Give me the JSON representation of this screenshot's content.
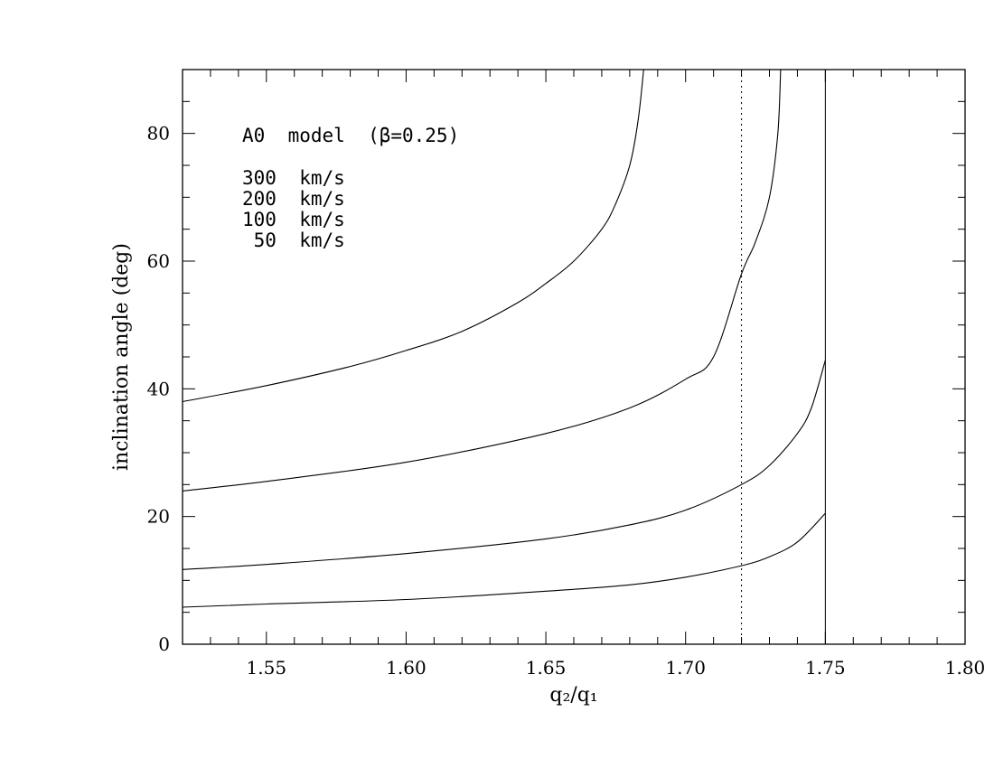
{
  "chart_data": {
    "type": "line",
    "title": "",
    "xlabel": "q₂/q₁",
    "ylabel": "inclination angle (deg)",
    "xlim": [
      1.52,
      1.8
    ],
    "ylim": [
      0,
      90
    ],
    "x_ticks": [
      1.55,
      1.6,
      1.65,
      1.7,
      1.75,
      1.8
    ],
    "x_tick_labels": [
      "1.55",
      "1.60",
      "1.65",
      "1.70",
      "1.75",
      "1.80"
    ],
    "y_ticks": [
      0,
      20,
      40,
      60,
      80
    ],
    "y_tick_labels": [
      "0",
      "20",
      "40",
      "60",
      "80"
    ],
    "grid": false,
    "annotations": {
      "model": "A0  model  (β=0.25)",
      "legend_lines": [
        "300  km/s",
        "200  km/s",
        "100  km/s",
        " 50  km/s"
      ]
    },
    "series": [
      {
        "points": [
          [
            1.52,
            38.0
          ],
          [
            1.55,
            40.5
          ],
          [
            1.58,
            43.5
          ],
          [
            1.6,
            46.0
          ],
          [
            1.62,
            49.0
          ],
          [
            1.64,
            53.5
          ],
          [
            1.65,
            56.5
          ],
          [
            1.66,
            60.0
          ],
          [
            1.67,
            65.0
          ],
          [
            1.675,
            69.0
          ],
          [
            1.68,
            75.0
          ],
          [
            1.683,
            82.0
          ],
          [
            1.685,
            90.0
          ]
        ]
      },
      {
        "points": [
          [
            1.52,
            24.0
          ],
          [
            1.55,
            25.5
          ],
          [
            1.6,
            28.5
          ],
          [
            1.65,
            33.0
          ],
          [
            1.68,
            37.0
          ],
          [
            1.7,
            41.5
          ],
          [
            1.71,
            45.0
          ],
          [
            1.72,
            58.0
          ],
          [
            1.725,
            63.0
          ],
          [
            1.73,
            70.0
          ],
          [
            1.733,
            80.0
          ],
          [
            1.734,
            90.0
          ]
        ]
      },
      {
        "points": [
          [
            1.52,
            11.7
          ],
          [
            1.55,
            12.5
          ],
          [
            1.6,
            14.2
          ],
          [
            1.65,
            16.5
          ],
          [
            1.68,
            18.7
          ],
          [
            1.7,
            21.0
          ],
          [
            1.72,
            25.0
          ],
          [
            1.73,
            28.0
          ],
          [
            1.74,
            33.0
          ],
          [
            1.745,
            37.0
          ],
          [
            1.75,
            44.5
          ]
        ]
      },
      {
        "points": [
          [
            1.52,
            5.8
          ],
          [
            1.55,
            6.3
          ],
          [
            1.6,
            7.0
          ],
          [
            1.65,
            8.3
          ],
          [
            1.68,
            9.3
          ],
          [
            1.7,
            10.5
          ],
          [
            1.72,
            12.3
          ],
          [
            1.73,
            13.7
          ],
          [
            1.74,
            16.0
          ],
          [
            1.75,
            20.5
          ]
        ]
      }
    ],
    "reference_lines": [
      {
        "x": 1.72,
        "style": "dotted"
      },
      {
        "x": 1.75,
        "style": "solid"
      }
    ]
  }
}
